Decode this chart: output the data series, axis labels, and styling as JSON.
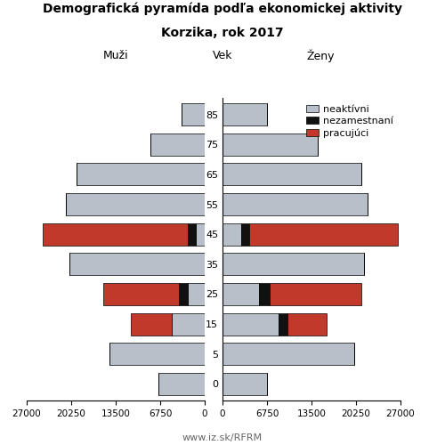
{
  "title_line1": "Demografická pyramída podľa ekonomickej aktivity",
  "title_line2": "Korzika, rok 2017",
  "label_muzi": "Muži",
  "label_zeny": "Ženy",
  "label_vek": "Vek",
  "footer": "www.iz.sk/RFRM",
  "age_groups": [
    0,
    5,
    15,
    25,
    35,
    45,
    55,
    65,
    75,
    85
  ],
  "colors": {
    "neaktivni": "#b8bfc8",
    "nezamestnani": "#111111",
    "pracujuci": "#c0392b"
  },
  "legend_labels": [
    "neaktívni",
    "nezamestnaní",
    "pracujúci"
  ],
  "males": {
    "neaktivni": [
      7000,
      14500,
      5000,
      2600,
      20500,
      1300,
      21000,
      19500,
      8200,
      3500
    ],
    "nezamestnani": [
      0,
      0,
      0,
      1300,
      0,
      1300,
      0,
      0,
      0,
      0
    ],
    "pracujuci": [
      0,
      0,
      6200,
      11500,
      0,
      22000,
      0,
      0,
      0,
      0
    ]
  },
  "females": {
    "neaktivni": [
      6800,
      20000,
      8500,
      5500,
      21500,
      2800,
      22000,
      21000,
      14500,
      6800
    ],
    "nezamestnani": [
      0,
      0,
      1300,
      1600,
      0,
      1300,
      0,
      0,
      0,
      0
    ],
    "pracujuci": [
      0,
      0,
      6000,
      14000,
      0,
      22500,
      0,
      0,
      0,
      0
    ]
  },
  "xlim": 27000,
  "xticks": [
    0,
    6750,
    13500,
    20250,
    27000
  ],
  "bar_height": 0.75,
  "figsize": [
    5.0,
    5.0
  ],
  "dpi": 100
}
